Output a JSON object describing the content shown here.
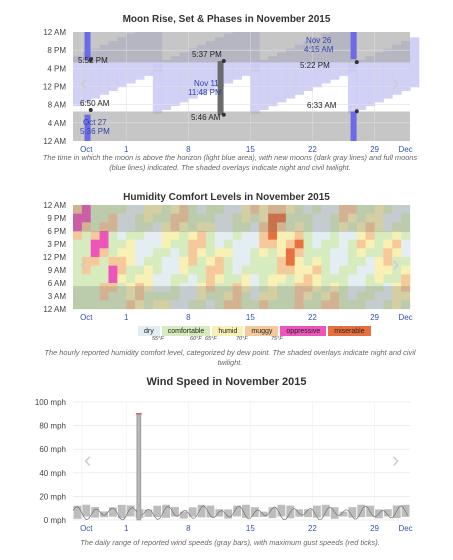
{
  "moon": {
    "title": "Moon Rise, Set & Phases in November 2015",
    "caption": "The time in which the moon is above the horizon (light blue area), with new moons (dark gray lines) and full moons (blue lines) indicated. The shaded overlays indicate night and civil twilight.",
    "y_labels": [
      "12 AM",
      "8 PM",
      "4 PM",
      "12 PM",
      "8 AM",
      "4 AM",
      "12 AM"
    ],
    "x_labels": [
      "Oct",
      "1",
      "8",
      "15",
      "22",
      "29",
      "Dec"
    ],
    "annotations": {
      "a1": "5:52 PM",
      "a2": "5:37 PM",
      "a3_line1": "Nov 26",
      "a3_line2": "4:15 AM",
      "a4": "5:22 PM",
      "a5_line1": "Nov 11",
      "a5_line2": "11:48 PM",
      "a6": "6:50 AM",
      "a7_line1": "Oct 27",
      "a7_line2": "5:36 PM",
      "a8": "5:46 AM",
      "a9": "6:33 AM"
    },
    "colors": {
      "moon_up": "#c9c9f4",
      "full_moon": "#6b6be8",
      "new_moon": "#6b6b6b",
      "night": "#a8a8a8"
    }
  },
  "humidity": {
    "title": "Humidity Comfort Levels in November 2015",
    "caption": "The hourly reported humidity comfort level, categorized by dew point. The shaded overlays indicate night and civil twilight.",
    "y_labels": [
      "12 AM",
      "9 PM",
      "6 PM",
      "3 PM",
      "12 PM",
      "9 AM",
      "6 AM",
      "3 AM",
      "12 AM"
    ],
    "x_labels": [
      "Oct",
      "1",
      "8",
      "15",
      "22",
      "29",
      "Dec"
    ],
    "legend": [
      {
        "label": "dry",
        "color": "#e4eef2"
      },
      {
        "label": "comfortable",
        "color": "#d6ecbf"
      },
      {
        "label": "humid",
        "color": "#f8f0b4"
      },
      {
        "label": "muggy",
        "color": "#f6c99a"
      },
      {
        "label": "oppressive",
        "color": "#ee55bb"
      },
      {
        "label": "miserable",
        "color": "#e8703e"
      }
    ],
    "legend_ticks": [
      "55°F",
      "60°F",
      "65°F",
      "70°F",
      "75°F"
    ]
  },
  "wind": {
    "title": "Wind Speed in November 2015",
    "caption": "The daily range of reported wind speeds (gray bars), with maximum gust speeds (red ticks).",
    "y_labels": [
      "100 mph",
      "80 mph",
      "60 mph",
      "40 mph",
      "20 mph",
      "0 mph"
    ],
    "x_labels": [
      "Oct",
      "1",
      "8",
      "15",
      "22",
      "29",
      "Dec"
    ]
  },
  "chart_data": [
    {
      "type": "area",
      "title": "Moon Rise, Set & Phases in November 2015",
      "xlabel": "",
      "ylabel": "",
      "x_range": [
        "Oct 26",
        "Dec 3"
      ],
      "y_range": [
        "12 AM",
        "12 AM"
      ],
      "grid": true,
      "full_moons": [
        {
          "date": "Oct 27",
          "time": "5:36 PM"
        },
        {
          "date": "Nov 26",
          "time": "4:15 AM"
        }
      ],
      "new_moons": [
        {
          "date": "Nov 11",
          "time": "11:48 PM"
        }
      ],
      "labels": {
        "moonrise_first": "6:50 AM",
        "moonset_first": "5:52 PM",
        "moonset_mid": "5:37 PM",
        "moonrise_mid": "5:46 AM",
        "moonset_end": "5:22 PM",
        "moonrise_end": "6:33 AM"
      }
    },
    {
      "type": "heatmap",
      "title": "Humidity Comfort Levels in November 2015",
      "x_range": [
        "Oct 26",
        "Dec 3"
      ],
      "y_range": [
        "12 AM",
        "12 AM"
      ],
      "categories": [
        "dry",
        "comfortable",
        "humid",
        "muggy",
        "oppressive",
        "miserable"
      ],
      "thresholds_f": [
        55,
        60,
        65,
        70,
        75
      ]
    },
    {
      "type": "bar",
      "title": "Wind Speed in November 2015",
      "ylabel": "",
      "ylim": [
        0,
        100
      ],
      "x_range": [
        "Oct 26",
        "Dec 3"
      ],
      "grid": true,
      "max_gust_peak": {
        "date": "Nov 2",
        "value": 90
      },
      "daily_range_typical": [
        0,
        12
      ]
    }
  ]
}
